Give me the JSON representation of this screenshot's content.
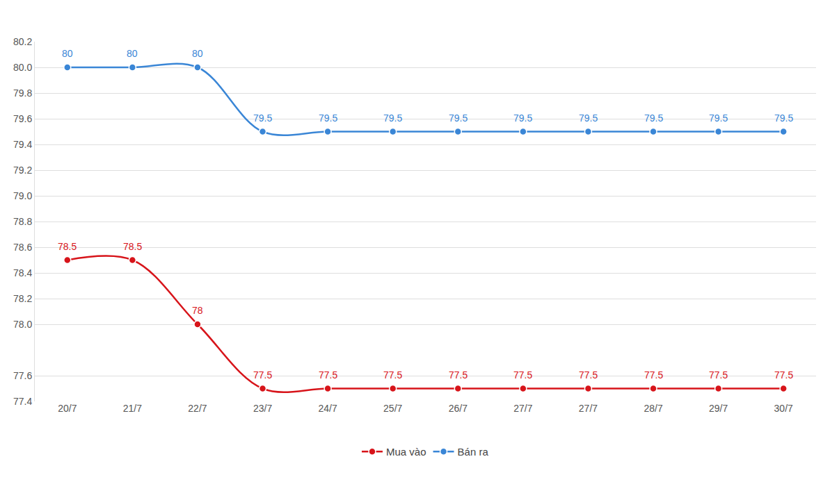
{
  "chart_data": {
    "type": "line",
    "categories": [
      "20/7",
      "21/7",
      "22/7",
      "23/7",
      "24/7",
      "25/7",
      "26/7",
      "27/7",
      "27/7",
      "28/7",
      "29/7",
      "30/7"
    ],
    "series": [
      {
        "name": "Mua vào",
        "color": "#d7141a",
        "values": [
          78.5,
          78.5,
          78,
          77.5,
          77.5,
          77.5,
          77.5,
          77.5,
          77.5,
          77.5,
          77.5,
          77.5
        ]
      },
      {
        "name": "Bán ra",
        "color": "#3a86d6",
        "values": [
          80,
          80,
          80,
          79.5,
          79.5,
          79.5,
          79.5,
          79.5,
          79.5,
          79.5,
          79.5,
          79.5
        ]
      }
    ],
    "ylim": [
      77.4,
      80.2
    ],
    "yticks": [
      77.4,
      77.6,
      {
        "value": 78,
        "label": "78.0"
      },
      78.2,
      78.4,
      78.6,
      78.8,
      {
        "value": 79,
        "label": "79.0"
      },
      79.2,
      79.4,
      79.6,
      79.8,
      {
        "value": 80,
        "label": "80.0"
      },
      80.2
    ],
    "grid": true,
    "legend": "bottom",
    "data_labels": true,
    "line_style": "spline",
    "marker": "circle"
  }
}
